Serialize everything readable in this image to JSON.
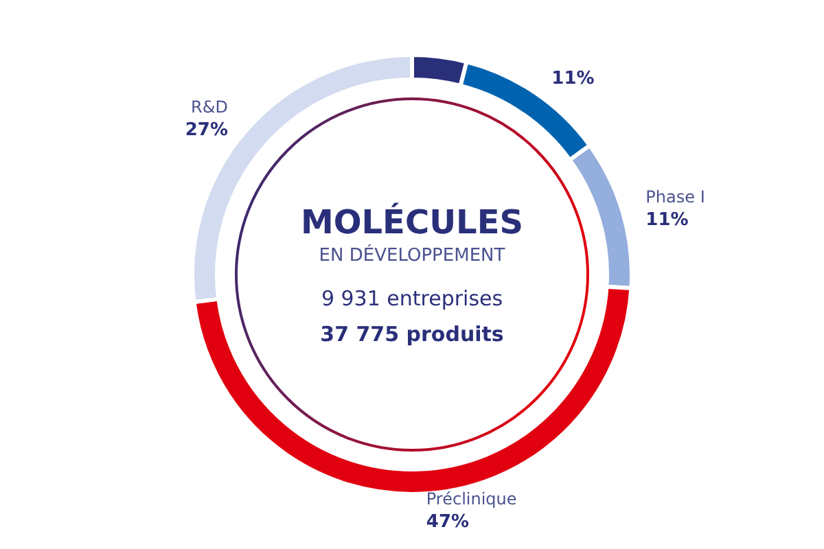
{
  "chart_data": {
    "type": "donut",
    "title": "MOLÉCULES",
    "subtitle": "EN DÉVELOPPEMENT",
    "annotations": [
      "9 931 entreprises",
      "37 775 produits"
    ],
    "categories": [
      null,
      null,
      "Phase I",
      "Préclinique",
      "R&D"
    ],
    "values": [
      4,
      11,
      11,
      47,
      27
    ],
    "value_labels": [
      null,
      "11%",
      "11%",
      "47%",
      "27%"
    ],
    "colors": [
      "#2a2f7a",
      "#0063af",
      "#94aedd",
      "#e1000f",
      "#d2dbef"
    ],
    "legend": false
  }
}
